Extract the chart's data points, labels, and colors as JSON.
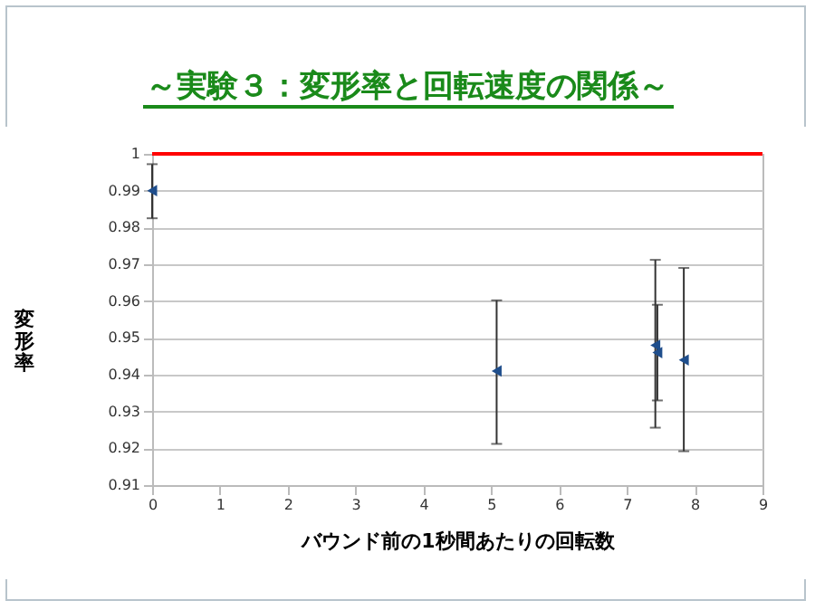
{
  "chart_data": {
    "type": "scatter",
    "title": "～実験３：変形率と回転速度の関係～",
    "xlabel": "バウンド前の1秒間あたりの回転数",
    "ylabel": "変形率",
    "x": [
      0,
      5.08,
      7.42,
      7.45,
      7.84
    ],
    "series": [
      {
        "color": "#1f4e8c",
        "values": [
          0.99,
          0.941,
          0.948,
          0.946,
          0.944
        ],
        "errors": [
          [
            0.9825,
            0.9972
          ],
          [
            0.9212,
            0.9602
          ],
          [
            0.9256,
            0.9712
          ],
          [
            0.933,
            0.959
          ],
          [
            0.9192,
            0.969
          ]
        ]
      }
    ],
    "xlim": [
      0,
      9
    ],
    "xticks": [
      0,
      1,
      2,
      3,
      4,
      5,
      6,
      7,
      8,
      9
    ],
    "ylim": [
      0.91,
      1
    ],
    "yticks": [
      0.91,
      0.92,
      0.93,
      0.94,
      0.95,
      0.96,
      0.97,
      0.98,
      0.99,
      1
    ],
    "ref_lines": [
      {
        "axis": "y",
        "value": 1,
        "color": "#ff0000"
      }
    ],
    "grid": "y",
    "marker": "triangle"
  }
}
